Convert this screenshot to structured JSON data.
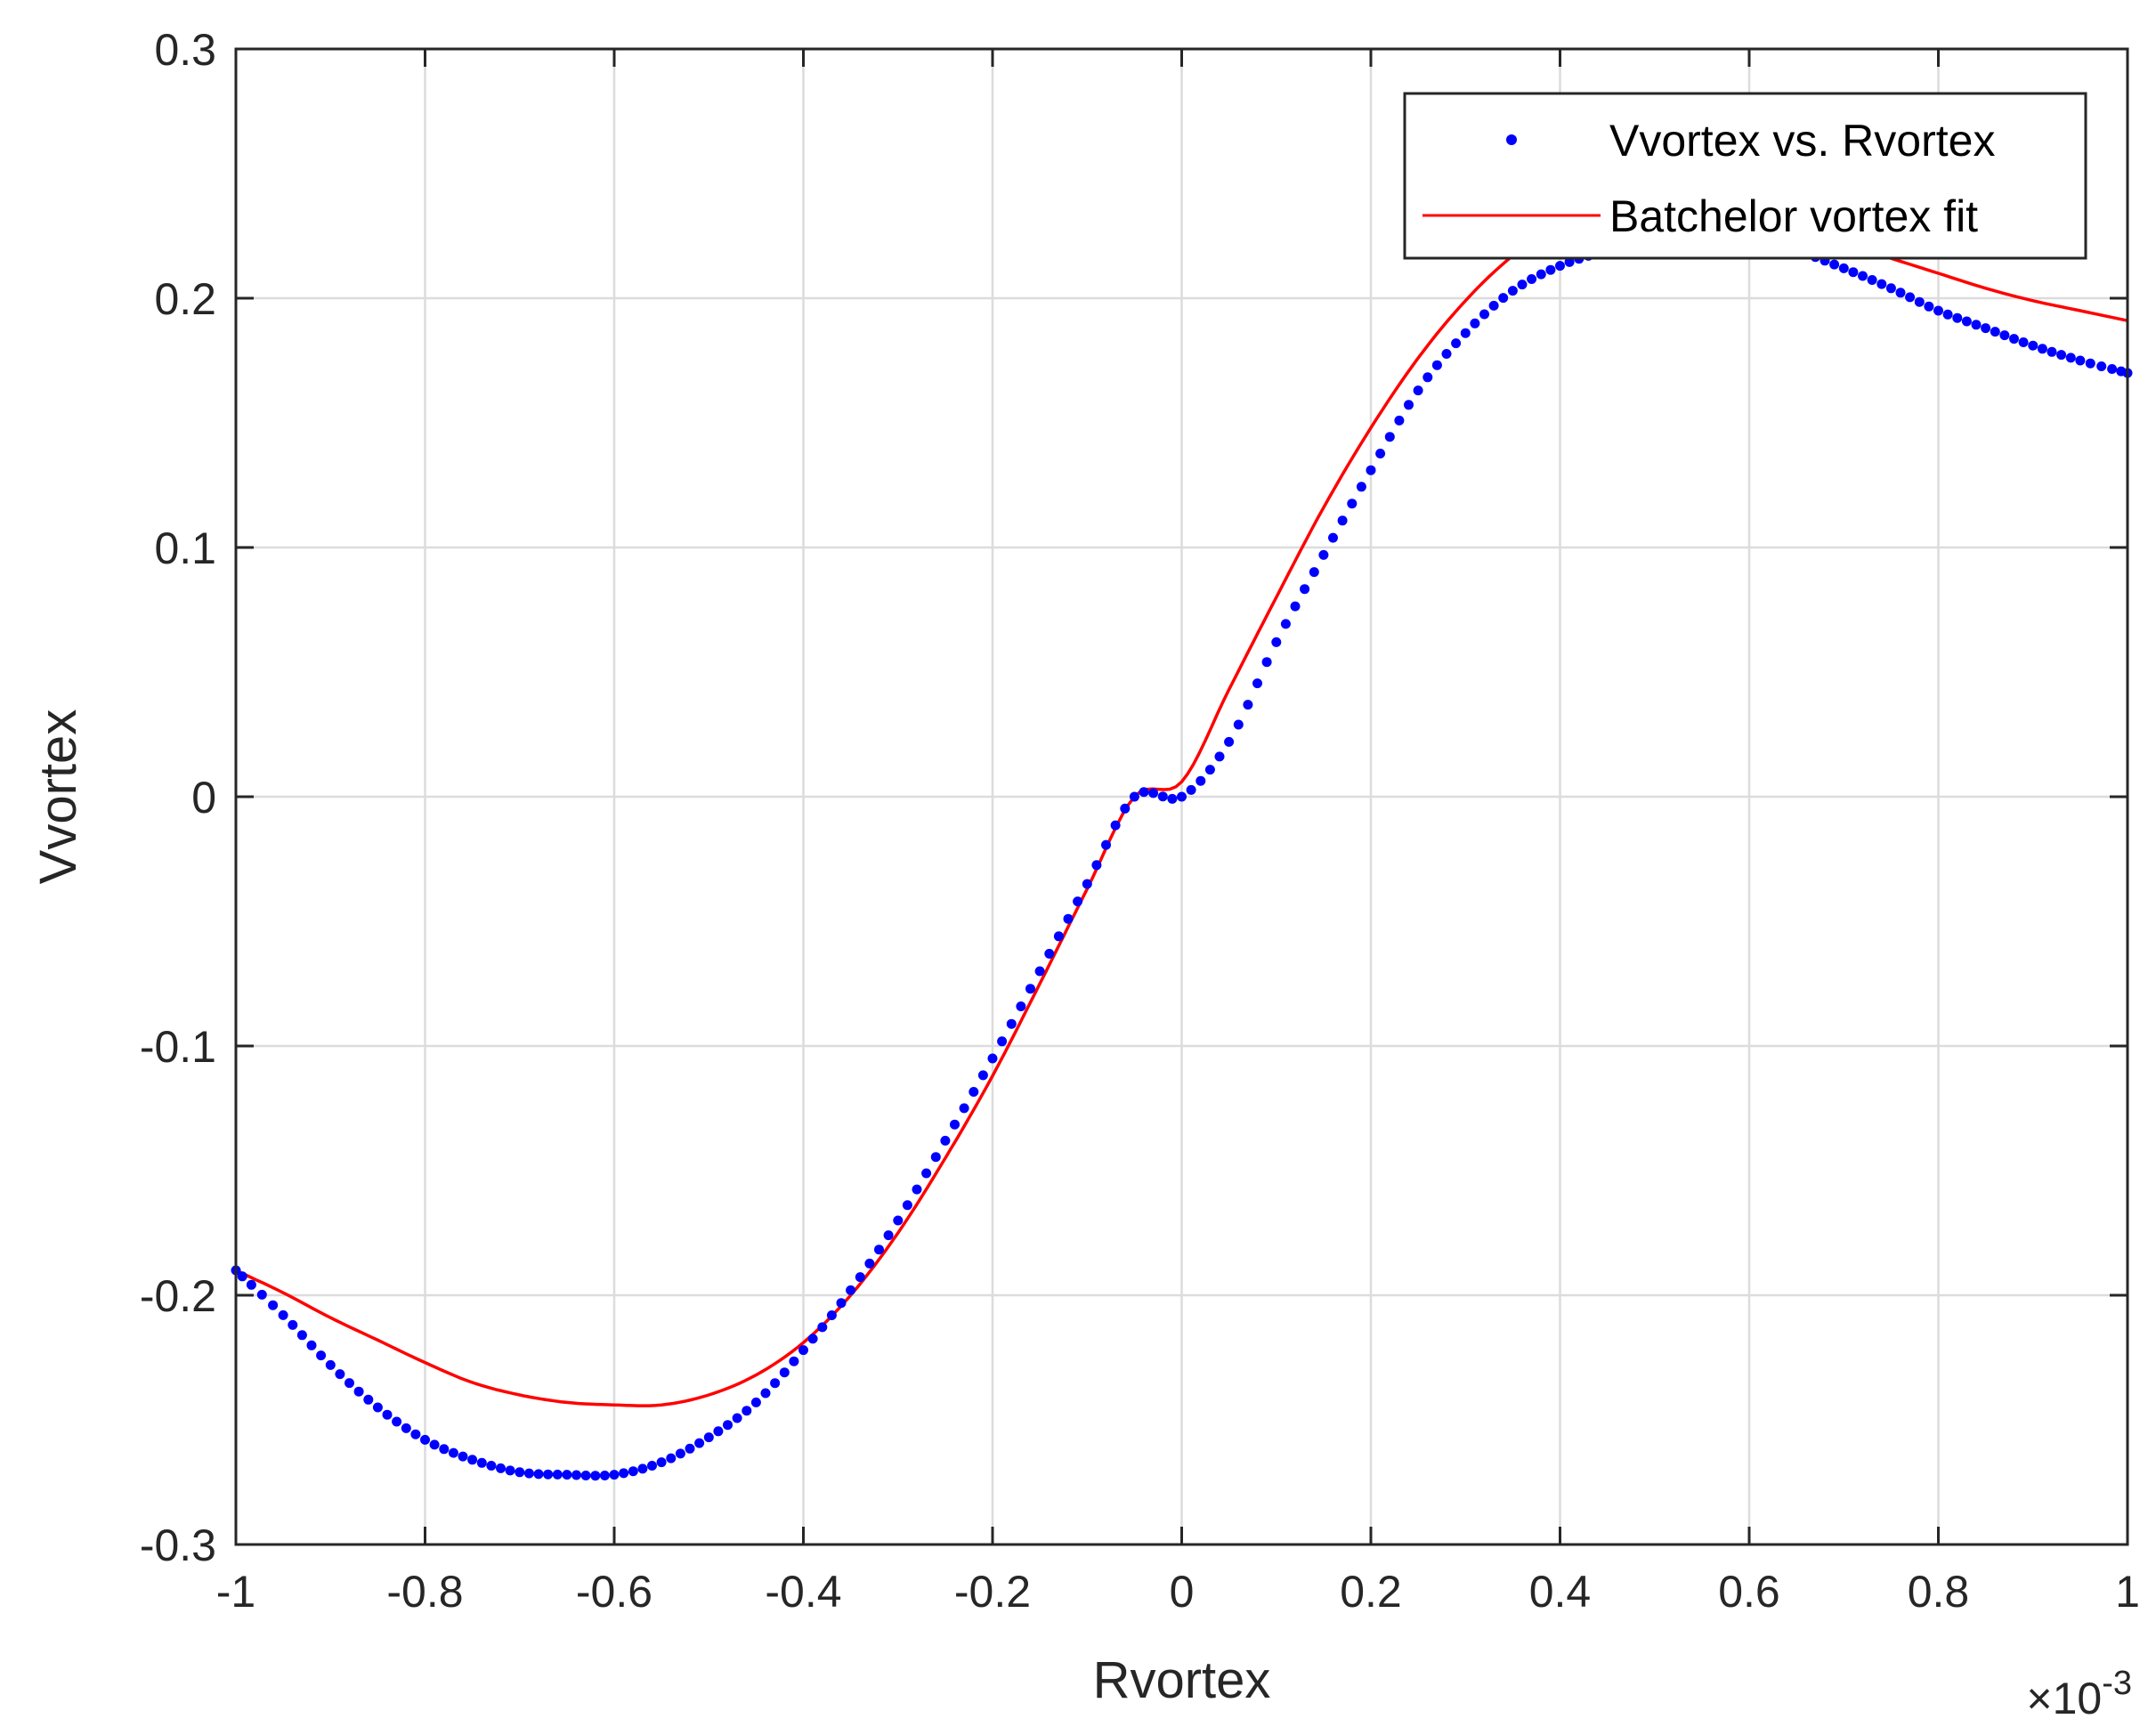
{
  "chart_data": {
    "type": "scatter",
    "xlabel": "Rvortex",
    "ylabel": "Vvortex",
    "x_exponent": {
      "times": "×",
      "base": "10",
      "power": "-3"
    },
    "xlim": [
      -1,
      1
    ],
    "ylim": [
      -0.3,
      0.3
    ],
    "x_scale_factor": 0.001,
    "xticks": [
      -1,
      -0.8,
      -0.6,
      -0.4,
      -0.2,
      0,
      0.2,
      0.4,
      0.6,
      0.8,
      1
    ],
    "xtick_labels": [
      "-1",
      "-0.8",
      "-0.6",
      "-0.4",
      "-0.2",
      "0",
      "0.2",
      "0.4",
      "0.6",
      "0.8",
      "1"
    ],
    "yticks": [
      -0.3,
      -0.2,
      -0.1,
      0,
      0.1,
      0.2,
      0.3
    ],
    "ytick_labels": [
      "-0.3",
      "-0.2",
      "-0.1",
      "0",
      "0.1",
      "0.2",
      "0.3"
    ],
    "grid": true,
    "legend_position": "top-right",
    "series": [
      {
        "name": "Vvortex vs. Rvortex",
        "style": "dots",
        "color": "#0000ff",
        "x": [
          -1.0,
          -0.95,
          -0.9,
          -0.85,
          -0.8,
          -0.75,
          -0.7,
          -0.65,
          -0.6,
          -0.55,
          -0.5,
          -0.45,
          -0.4,
          -0.35,
          -0.3,
          -0.25,
          -0.2,
          -0.15,
          -0.1,
          -0.05,
          0.0,
          0.05,
          0.1,
          0.15,
          0.2,
          0.25,
          0.3,
          0.35,
          0.4,
          0.45,
          0.5,
          0.55,
          0.6,
          0.65,
          0.7,
          0.75,
          0.8,
          0.85,
          0.9,
          0.95,
          1.0
        ],
        "y": [
          -0.19,
          -0.208,
          -0.228,
          -0.245,
          -0.258,
          -0.266,
          -0.271,
          -0.272,
          -0.272,
          -0.267,
          -0.257,
          -0.243,
          -0.222,
          -0.198,
          -0.17,
          -0.138,
          -0.105,
          -0.07,
          -0.035,
          0.0,
          0.0,
          0.022,
          0.062,
          0.097,
          0.131,
          0.163,
          0.186,
          0.203,
          0.213,
          0.219,
          0.222,
          0.222,
          0.222,
          0.219,
          0.212,
          0.204,
          0.195,
          0.188,
          0.181,
          0.175,
          0.17
        ]
      },
      {
        "name": "Batchelor vortex fit",
        "style": "line",
        "color": "#ff0000",
        "x": [
          -1.0,
          -0.95,
          -0.9,
          -0.85,
          -0.8,
          -0.75,
          -0.7,
          -0.65,
          -0.6,
          -0.55,
          -0.5,
          -0.45,
          -0.4,
          -0.35,
          -0.3,
          -0.25,
          -0.2,
          -0.15,
          -0.1,
          -0.05,
          0.0,
          0.05,
          0.1,
          0.15,
          0.2,
          0.25,
          0.3,
          0.35,
          0.4,
          0.45,
          0.5,
          0.55,
          0.6,
          0.65,
          0.7,
          0.75,
          0.8,
          0.85,
          0.9,
          0.95,
          1.0
        ],
        "y": [
          -0.19,
          -0.199,
          -0.209,
          -0.218,
          -0.227,
          -0.235,
          -0.24,
          -0.243,
          -0.244,
          -0.244,
          -0.24,
          -0.232,
          -0.219,
          -0.2,
          -0.175,
          -0.145,
          -0.112,
          -0.075,
          -0.037,
          0.0,
          0.006,
          0.043,
          0.08,
          0.116,
          0.148,
          0.176,
          0.199,
          0.217,
          0.229,
          0.235,
          0.237,
          0.236,
          0.233,
          0.228,
          0.222,
          0.216,
          0.21,
          0.204,
          0.199,
          0.195,
          0.191
        ]
      }
    ]
  }
}
